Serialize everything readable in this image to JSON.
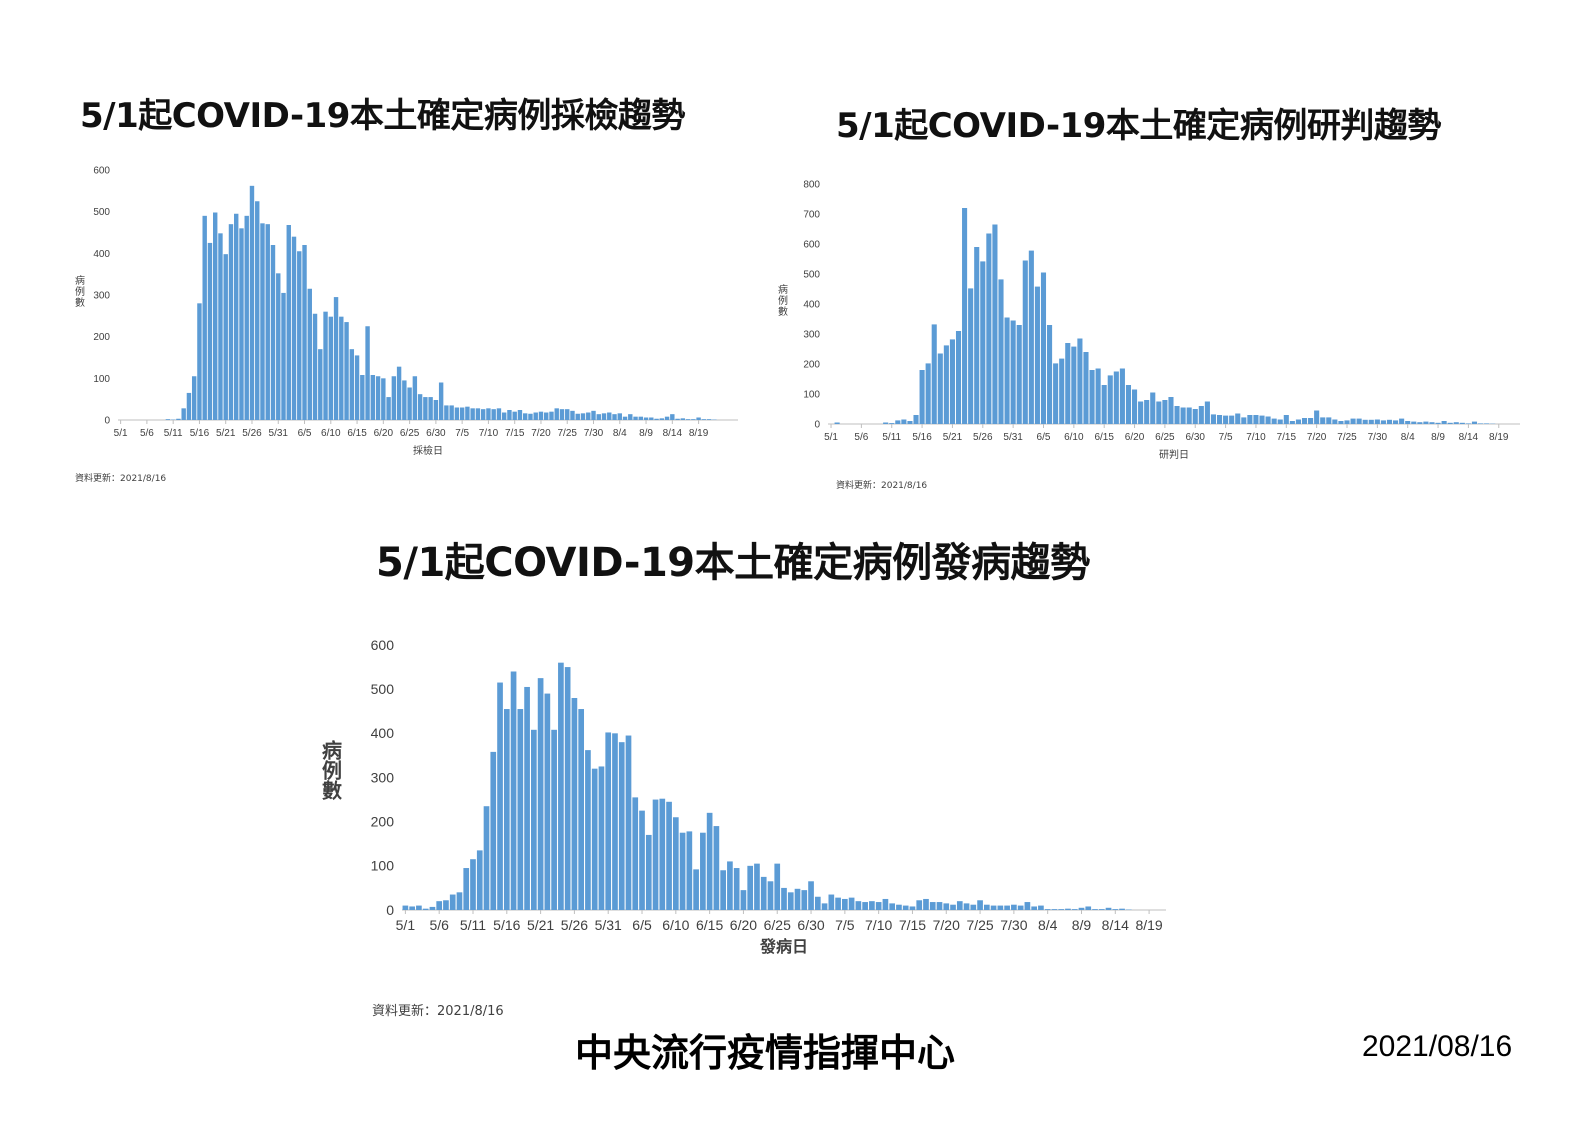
{
  "colors": {
    "bar": "#5B9BD5",
    "axis": "#BFBFBF",
    "text": "#404040"
  },
  "footer": {
    "center": "中央流行疫情指揮中心",
    "date": "2021/08/16"
  },
  "chart_data": [
    {
      "type": "bar",
      "title": "5/1起COVID-19本土確定病例採檢趨勢",
      "xlabel": "採檢日",
      "ylabel": "病例數",
      "note": "資料更新：2021/8/16",
      "ylim": [
        0,
        600
      ],
      "yticks": [
        0,
        100,
        200,
        300,
        400,
        500,
        600
      ],
      "xtick_labels": [
        "5/1",
        "5/6",
        "5/11",
        "5/16",
        "5/21",
        "5/26",
        "5/31",
        "6/5",
        "6/10",
        "6/15",
        "6/20",
        "6/25",
        "6/30",
        "7/5",
        "7/10",
        "7/15",
        "7/20",
        "7/25",
        "7/30",
        "8/4",
        "8/9",
        "8/14",
        "8/19"
      ],
      "grid": false,
      "legend": "none",
      "values": [
        0,
        0,
        0,
        0,
        0,
        0,
        0,
        0,
        0,
        2,
        1,
        3,
        28,
        65,
        105,
        280,
        490,
        425,
        498,
        448,
        398,
        470,
        495,
        460,
        490,
        562,
        525,
        472,
        470,
        420,
        352,
        305,
        468,
        440,
        405,
        420,
        315,
        255,
        170,
        260,
        248,
        295,
        248,
        235,
        170,
        155,
        108,
        225,
        108,
        105,
        100,
        55,
        105,
        128,
        95,
        78,
        105,
        62,
        55,
        55,
        48,
        90,
        35,
        35,
        30,
        30,
        32,
        28,
        28,
        26,
        28,
        26,
        28,
        18,
        24,
        20,
        24,
        16,
        15,
        18,
        20,
        18,
        20,
        28,
        26,
        26,
        22,
        15,
        16,
        18,
        22,
        14,
        16,
        18,
        14,
        16,
        8,
        14,
        8,
        8,
        6,
        6,
        3,
        4,
        8,
        14,
        3,
        4,
        2,
        2,
        6,
        2,
        2,
        1,
        0,
        0,
        0,
        0
      ]
    },
    {
      "type": "bar",
      "title": "5/1起COVID-19本土確定病例研判趨勢",
      "xlabel": "研判日",
      "ylabel": "病例數",
      "note": "資料更新：2021/8/16",
      "ylim": [
        0,
        800
      ],
      "yticks": [
        0,
        100,
        200,
        300,
        400,
        500,
        600,
        700,
        800
      ],
      "xtick_labels": [
        "5/1",
        "5/6",
        "5/11",
        "5/16",
        "5/21",
        "5/26",
        "5/31",
        "6/5",
        "6/10",
        "6/15",
        "6/20",
        "6/25",
        "6/30",
        "7/5",
        "7/10",
        "7/15",
        "7/20",
        "7/25",
        "7/30",
        "8/4",
        "8/9",
        "8/14",
        "8/19"
      ],
      "grid": false,
      "legend": "none",
      "values": [
        0,
        5,
        0,
        0,
        0,
        0,
        0,
        0,
        0,
        5,
        3,
        12,
        15,
        10,
        30,
        180,
        202,
        332,
        235,
        262,
        282,
        310,
        720,
        452,
        590,
        542,
        635,
        665,
        482,
        355,
        345,
        330,
        545,
        578,
        458,
        505,
        330,
        202,
        218,
        270,
        258,
        285,
        240,
        180,
        185,
        130,
        162,
        175,
        185,
        130,
        115,
        75,
        80,
        105,
        75,
        80,
        90,
        60,
        55,
        55,
        50,
        60,
        75,
        32,
        30,
        28,
        28,
        35,
        22,
        30,
        30,
        28,
        25,
        18,
        15,
        30,
        10,
        15,
        20,
        20,
        45,
        22,
        22,
        15,
        10,
        12,
        18,
        18,
        14,
        14,
        15,
        12,
        14,
        12,
        18,
        10,
        8,
        6,
        8,
        6,
        4,
        10,
        4,
        6,
        4,
        2,
        8,
        2,
        2,
        1,
        0,
        0,
        0,
        0
      ]
    },
    {
      "type": "bar",
      "title": "5/1起COVID-19本土確定病例發病趨勢",
      "xlabel": "發病日",
      "ylabel": "病例數",
      "note": "資料更新：2021/8/16",
      "ylim": [
        0,
        600
      ],
      "yticks": [
        0,
        100,
        200,
        300,
        400,
        500,
        600
      ],
      "xtick_labels": [
        "5/1",
        "5/6",
        "5/11",
        "5/16",
        "5/21",
        "5/26",
        "5/31",
        "6/5",
        "6/10",
        "6/15",
        "6/20",
        "6/25",
        "6/30",
        "7/5",
        "7/10",
        "7/15",
        "7/20",
        "7/25",
        "7/30",
        "8/4",
        "8/9",
        "8/14",
        "8/19"
      ],
      "grid": false,
      "legend": "none",
      "values": [
        10,
        8,
        10,
        3,
        7,
        20,
        22,
        35,
        40,
        95,
        115,
        135,
        235,
        358,
        515,
        455,
        540,
        455,
        505,
        408,
        525,
        490,
        408,
        560,
        550,
        480,
        455,
        362,
        320,
        325,
        402,
        400,
        380,
        395,
        255,
        225,
        170,
        250,
        252,
        245,
        210,
        175,
        178,
        92,
        175,
        220,
        190,
        90,
        110,
        95,
        45,
        100,
        105,
        75,
        65,
        105,
        50,
        40,
        48,
        45,
        65,
        30,
        15,
        35,
        28,
        25,
        28,
        20,
        18,
        20,
        18,
        25,
        15,
        12,
        10,
        8,
        22,
        25,
        18,
        18,
        15,
        12,
        20,
        15,
        12,
        22,
        12,
        10,
        10,
        10,
        12,
        10,
        18,
        8,
        10,
        2,
        2,
        2,
        3,
        2,
        5,
        8,
        2,
        2,
        5,
        2,
        3,
        1,
        0,
        0,
        0,
        0,
        0
      ]
    }
  ]
}
